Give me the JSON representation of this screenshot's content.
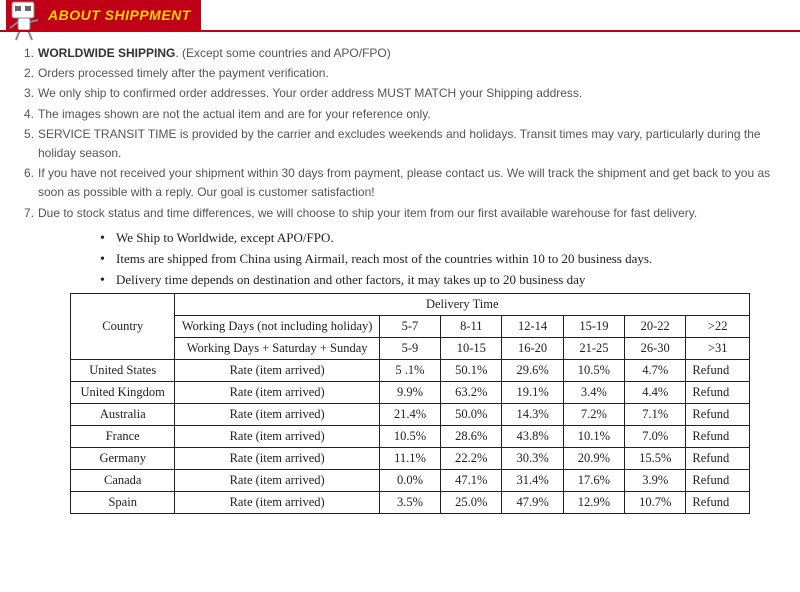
{
  "banner": {
    "title": "ABOUT SHIPPMENT",
    "bg_color": "#c00016",
    "text_color": "#ffd200"
  },
  "policy": [
    {
      "num": "1.",
      "bold_lead": "WORLDWIDE SHIPPING",
      "rest": ". (Except some countries and APO/FPO)"
    },
    {
      "num": "2.",
      "bold_lead": "",
      "rest": "Orders processed timely after the payment verification."
    },
    {
      "num": "3.",
      "bold_lead": "",
      "rest": "We only ship to confirmed order addresses. Your order address MUST MATCH your Shipping address."
    },
    {
      "num": "4.",
      "bold_lead": "",
      "rest": "The images shown are not the actual item and are for your reference only."
    },
    {
      "num": "5.",
      "bold_lead": "",
      "rest": "SERVICE TRANSIT TIME is provided by the carrier and excludes weekends and holidays. Transit times may vary, particularly during the holiday season."
    },
    {
      "num": "6.",
      "bold_lead": "",
      "rest": "If you have not received your shipment within 30 days from payment, please contact us. We will track the shipment and get back to you as soon as possible with a reply. Our goal is customer satisfaction!"
    },
    {
      "num": "7.",
      "bold_lead": "",
      "rest": "Due to stock status and time differences, we will choose to ship your item from our first available warehouse for fast delivery."
    }
  ],
  "bullets": [
    "We Ship to Worldwide, except APO/FPO.",
    "Items are shipped from China using Airmail, reach most of the countries within 10 to 20 business days.",
    "Delivery time depends on destination and other factors, it may takes up to 20 business day"
  ],
  "table": {
    "header_title": "Delivery Time",
    "country_label": "Country",
    "row1_label": "Working Days (not including holiday)",
    "row1_vals": [
      "5-7",
      "8-11",
      "12-14",
      "15-19",
      "20-22",
      ">22"
    ],
    "row2_label": "Working Days + Saturday + Sunday",
    "row2_vals": [
      "5-9",
      "10-15",
      "16-20",
      "21-25",
      "26-30",
      ">31"
    ],
    "rate_label": "Rate (item arrived)",
    "refund_label": "Refund",
    "rows": [
      {
        "country": "United States",
        "vals": [
          "5 .1%",
          "50.1%",
          "29.6%",
          "10.5%",
          "4.7%"
        ]
      },
      {
        "country": "United Kingdom",
        "vals": [
          "9.9%",
          "63.2%",
          "19.1%",
          "3.4%",
          "4.4%"
        ]
      },
      {
        "country": "Australia",
        "vals": [
          "21.4%",
          "50.0%",
          "14.3%",
          "7.2%",
          "7.1%"
        ]
      },
      {
        "country": "France",
        "vals": [
          "10.5%",
          "28.6%",
          "43.8%",
          "10.1%",
          "7.0%"
        ]
      },
      {
        "country": "Germany",
        "vals": [
          "11.1%",
          "22.2%",
          "30.3%",
          "20.9%",
          "15.5%"
        ]
      },
      {
        "country": "Canada",
        "vals": [
          "0.0%",
          "47.1%",
          "31.4%",
          "17.6%",
          "3.9%"
        ]
      },
      {
        "country": "Spain",
        "vals": [
          "3.5%",
          "25.0%",
          "47.9%",
          "12.9%",
          "10.7%"
        ]
      }
    ]
  }
}
